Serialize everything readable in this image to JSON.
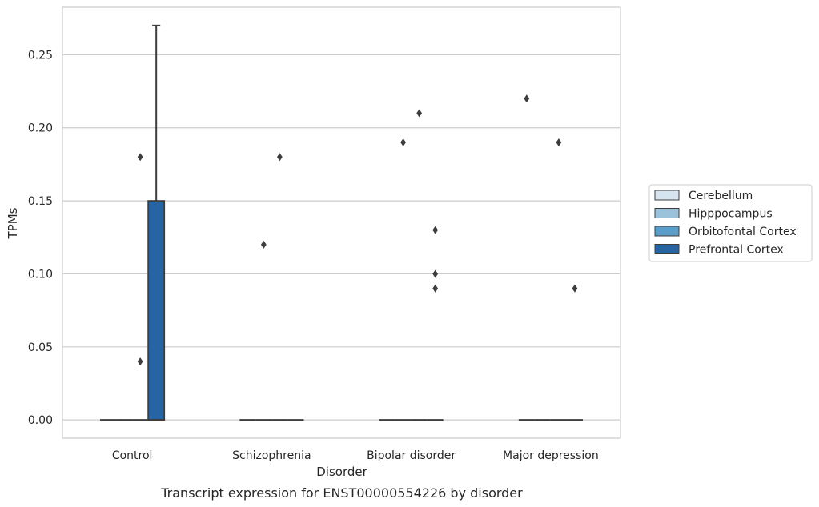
{
  "chart_data": {
    "type": "box",
    "title": "",
    "caption": "Transcript expression for ENST00000554226 by disorder",
    "xlabel": "Disorder",
    "ylabel": "TPMs",
    "ylim": [
      -0.0125,
      0.2825
    ],
    "yticks": [
      "0.00",
      "0.05",
      "0.10",
      "0.15",
      "0.20",
      "0.25"
    ],
    "ytick_values": [
      0,
      0.05,
      0.1,
      0.15,
      0.2,
      0.25
    ],
    "categories": [
      "Control",
      "Schizophrenia",
      "Bipolar disorder",
      "Major depression"
    ],
    "grid": "horizontal",
    "legend_position": "right",
    "series": [
      {
        "name": "Cerebellum",
        "color": "#d6e4f0",
        "boxes": [
          {
            "category": "Control",
            "q1": 0,
            "median": 0,
            "q3": 0,
            "whisker_low": 0,
            "whisker_high": 0,
            "outliers": []
          },
          {
            "category": "Schizophrenia",
            "q1": 0,
            "median": 0,
            "q3": 0,
            "whisker_low": 0,
            "whisker_high": 0,
            "outliers": []
          },
          {
            "category": "Bipolar disorder",
            "q1": 0,
            "median": 0,
            "q3": 0,
            "whisker_low": 0,
            "whisker_high": 0,
            "outliers": []
          },
          {
            "category": "Major depression",
            "q1": 0,
            "median": 0,
            "q3": 0,
            "whisker_low": 0,
            "whisker_high": 0,
            "outliers": [
              0.22
            ]
          }
        ]
      },
      {
        "name": "Hipppocampus",
        "color": "#9bc2db",
        "boxes": [
          {
            "category": "Control",
            "q1": 0,
            "median": 0,
            "q3": 0,
            "whisker_low": 0,
            "whisker_high": 0,
            "outliers": []
          },
          {
            "category": "Schizophrenia",
            "q1": 0,
            "median": 0,
            "q3": 0,
            "whisker_low": 0,
            "whisker_high": 0,
            "outliers": [
              0.12
            ]
          },
          {
            "category": "Bipolar disorder",
            "q1": 0,
            "median": 0,
            "q3": 0,
            "whisker_low": 0,
            "whisker_high": 0,
            "outliers": [
              0.19
            ]
          },
          {
            "category": "Major depression",
            "q1": 0,
            "median": 0,
            "q3": 0,
            "whisker_low": 0,
            "whisker_high": 0,
            "outliers": []
          }
        ]
      },
      {
        "name": "Orbitofontal Cortex",
        "color": "#5a9dc8",
        "boxes": [
          {
            "category": "Control",
            "q1": 0,
            "median": 0,
            "q3": 0,
            "whisker_low": 0,
            "whisker_high": 0,
            "outliers": [
              0.18,
              0.04
            ]
          },
          {
            "category": "Schizophrenia",
            "q1": 0,
            "median": 0,
            "q3": 0,
            "whisker_low": 0,
            "whisker_high": 0,
            "outliers": [
              0.18
            ]
          },
          {
            "category": "Bipolar disorder",
            "q1": 0,
            "median": 0,
            "q3": 0,
            "whisker_low": 0,
            "whisker_high": 0,
            "outliers": [
              0.21
            ]
          },
          {
            "category": "Major depression",
            "q1": 0,
            "median": 0,
            "q3": 0,
            "whisker_low": 0,
            "whisker_high": 0,
            "outliers": [
              0.19
            ]
          }
        ]
      },
      {
        "name": "Prefrontal Cortex",
        "color": "#2664a3",
        "boxes": [
          {
            "category": "Control",
            "q1": 0,
            "median": 0,
            "q3": 0.15,
            "whisker_low": 0,
            "whisker_high": 0.27,
            "outliers": []
          },
          {
            "category": "Schizophrenia",
            "q1": 0,
            "median": 0,
            "q3": 0,
            "whisker_low": 0,
            "whisker_high": 0,
            "outliers": []
          },
          {
            "category": "Bipolar disorder",
            "q1": 0,
            "median": 0,
            "q3": 0,
            "whisker_low": 0,
            "whisker_high": 0,
            "outliers": [
              0.13,
              0.1,
              0.09
            ]
          },
          {
            "category": "Major depression",
            "q1": 0,
            "median": 0,
            "q3": 0,
            "whisker_low": 0,
            "whisker_high": 0,
            "outliers": [
              0.09
            ]
          }
        ]
      }
    ]
  }
}
